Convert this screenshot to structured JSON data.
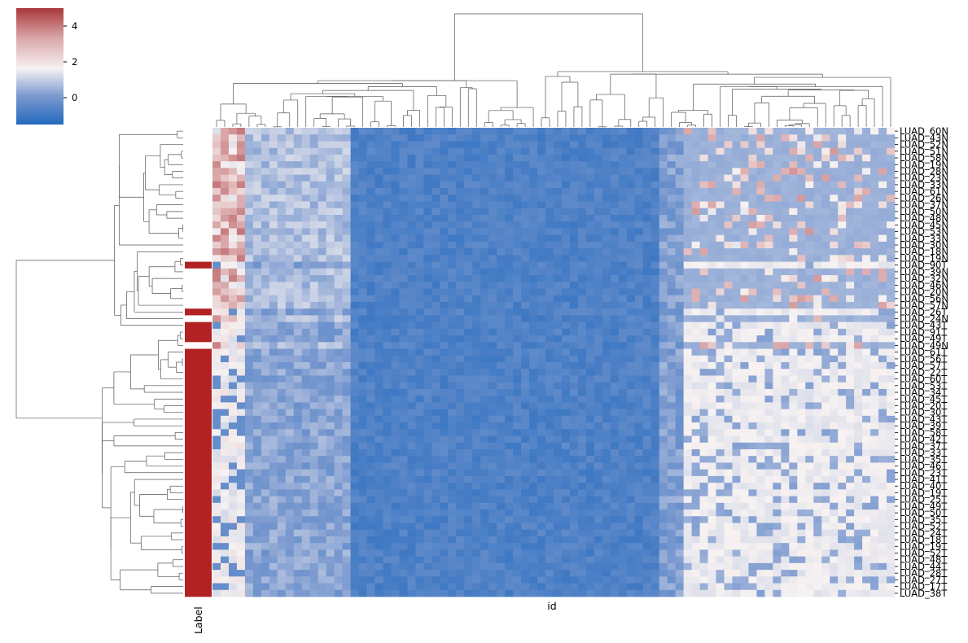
{
  "chart_data": {
    "type": "heatmap",
    "subtype": "clustermap",
    "title": "",
    "xlabel": "id",
    "label_column_title": "Label",
    "colorbar": {
      "ticks": [
        4,
        2,
        0
      ],
      "range": [
        -1.5,
        5.0
      ],
      "colormap": "vlag",
      "colors": {
        "low": "#2369bd",
        "mid": "#f7f2f2",
        "high": "#a9373b"
      }
    },
    "label_colors": {
      "N": "#ffffff",
      "T": "#b22222"
    },
    "dendrogram_color": "#555555",
    "row_tick_labels": [
      "LUAD_60N",
      "LUAD_43N",
      "LUAD_52N",
      "LUAD_51N",
      "LUAD_58N",
      "LUAD_19N",
      "LUAD_28N",
      "LUAD_23N",
      "LUAD_33N",
      "LUAD_61N",
      "LUAD_26N",
      "LUAD_37N",
      "LUAD_50N",
      "LUAD_48N",
      "LUAD_45N",
      "LUAD_53N",
      "LUAD_33N",
      "LUAD_30N",
      "LUAD_18N",
      "LUAD_19N",
      "LUAD_90T",
      "LUAD_39N",
      "LUAD_32N",
      "LUAD_46N",
      "LUAD_20N",
      "LUAD_56N",
      "LUAD_57N",
      "LUAD_26T",
      "LUAD_24N",
      "LUAD_43T",
      "LUAD_91T",
      "LUAD_49T",
      "LUAD_49N",
      "LUAD_61T",
      "LUAD_56T",
      "LUAD_57T",
      "LUAD_22T",
      "LUAD_60T",
      "LUAD_53T",
      "LUAD_34T",
      "LUAD_45T",
      "LUAD_20T",
      "LUAD_30T",
      "LUAD_43T",
      "LUAD_39T",
      "LUAD_58T",
      "LUAD_42T",
      "LUAD_37T",
      "LUAD_33T",
      "LUAD_35T",
      "LUAD_46T",
      "LUAD_23T",
      "LUAD_41T",
      "LUAD_40T",
      "LUAD_19T",
      "LUAD_25T",
      "LUAD_49T",
      "LUAD_50T",
      "LUAD_35T",
      "LUAD_52T",
      "LUAD_24T",
      "LUAD_18T",
      "LUAD_19T",
      "LUAD_52T",
      "LUAD_48T",
      "LUAD_44T",
      "LUAD_28T",
      "LUAD_27T",
      "LUAD_17T",
      "LUAD_38T"
    ]
  }
}
